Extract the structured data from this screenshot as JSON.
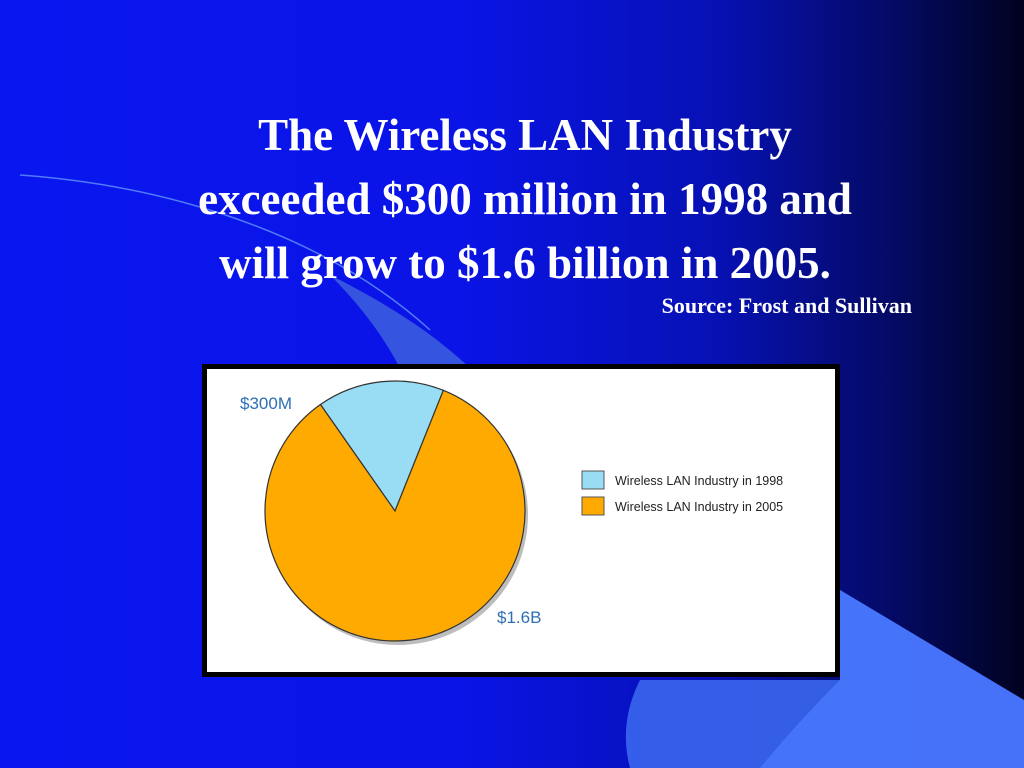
{
  "slide": {
    "title_lines": [
      "The Wireless LAN Industry",
      "exceeded $300 million in 1998 and",
      "will grow to $1.6 billion in 2005."
    ],
    "source": "Source: Frost and Sullivan"
  },
  "colors": {
    "slice_1998": "#99ddf4",
    "slice_2005": "#ffaa00",
    "label_text": "#2e6fb4",
    "outline": "#333333"
  },
  "chart_data": {
    "type": "pie",
    "title": "",
    "series": [
      {
        "name": "Wireless LAN Industry in 1998",
        "value": 300,
        "label": "$300M"
      },
      {
        "name": "Wireless LAN Industry in 2005",
        "value": 1600,
        "label": "$1.6B"
      }
    ],
    "legend_position": "right"
  }
}
